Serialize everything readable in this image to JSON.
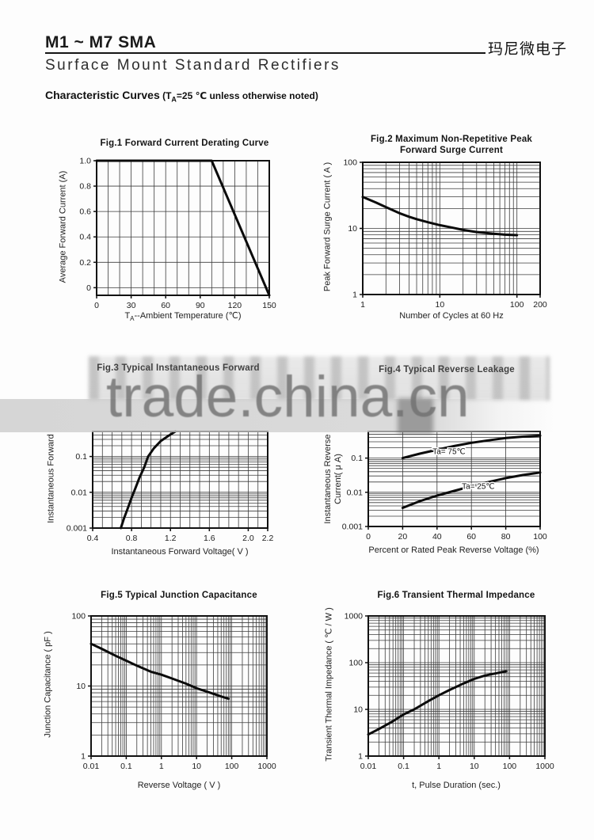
{
  "header": {
    "part_number": "M1 ~ M7 SMA",
    "subtitle": "Surface  Mount  Standard  Rectifiers",
    "brand": "玛尼微电子"
  },
  "section": {
    "heading_main": "Characteristic Curves",
    "cond_pre": " (T",
    "cond_sub": "A",
    "cond_post": "=25 ℃ unless otherwise noted)"
  },
  "watermark": {
    "text": "trade.china.cn"
  },
  "chart_data": [
    {
      "id": "fig1",
      "type": "line",
      "title_lines": [
        "Fig.1 Forward Current Derating Curve"
      ],
      "xlabel_prefix": "T",
      "xlabel_sub": "A",
      "xlabel_rest": "--Ambient Temperature (℃)",
      "ylabel": "Average Forward Current (A)",
      "x": {
        "type": "linear",
        "min": 0,
        "max": 150,
        "gstep": 10,
        "g0": 0,
        "ticks": [
          [
            0,
            "0"
          ],
          [
            30,
            "30"
          ],
          [
            60,
            "60"
          ],
          [
            90,
            "90"
          ],
          [
            120,
            "120"
          ],
          [
            150,
            "150"
          ]
        ]
      },
      "y": {
        "type": "linear",
        "min": -0.06,
        "max": 1.0,
        "gstep": 0.2,
        "g0": 0,
        "ticks": [
          [
            0,
            "0"
          ],
          [
            0.2,
            "0.2"
          ],
          [
            0.4,
            "0.4"
          ],
          [
            0.6,
            "0.6"
          ],
          [
            0.8,
            "0.8"
          ],
          [
            1.0,
            "1.0"
          ]
        ]
      },
      "grid": true,
      "series": [
        {
          "name": "forward-current-derating",
          "points": [
            [
              0,
              1
            ],
            [
              100,
              1
            ],
            [
              150,
              -0.06
            ]
          ]
        }
      ]
    },
    {
      "id": "fig2",
      "type": "line",
      "title_lines": [
        "Fig.2 Maximum Non-Repetitive Peak",
        "Forward Surge Current"
      ],
      "xlabel": "Number of Cycles at 60 Hz",
      "ylabel": "Peak Forward Surge Current ( A )",
      "x": {
        "type": "log",
        "min": 1,
        "max": 200,
        "ticks": [
          [
            1,
            "1"
          ],
          [
            10,
            "10"
          ],
          [
            100,
            "100"
          ],
          [
            200,
            "200"
          ]
        ]
      },
      "y": {
        "type": "log",
        "min": 1,
        "max": 100,
        "ticks": [
          [
            1,
            "1"
          ],
          [
            10,
            "10"
          ],
          [
            100,
            "100"
          ]
        ]
      },
      "grid": true,
      "series": [
        {
          "name": "peak-surge-current",
          "points": [
            [
              1,
              30
            ],
            [
              1.5,
              24.5
            ],
            [
              2,
              21
            ],
            [
              3,
              17
            ],
            [
              4,
              15
            ],
            [
              5,
              13.8
            ],
            [
              7,
              12.4
            ],
            [
              10,
              11.2
            ],
            [
              15,
              10.2
            ],
            [
              20,
              9.5
            ],
            [
              30,
              8.8
            ],
            [
              50,
              8.3
            ],
            [
              70,
              8.05
            ],
            [
              100,
              7.9
            ]
          ]
        }
      ]
    },
    {
      "id": "fig3",
      "type": "line",
      "title_lines": [
        "Fig.3 Typical Instantaneous Forward"
      ],
      "xlabel": "Instantaneous Forward Voltage( V )",
      "ylabel": "Instantaneous Forward",
      "x": {
        "type": "linear",
        "min": 0.4,
        "max": 2.2,
        "gstep": 0.1,
        "g0": 0.4,
        "ticks": [
          [
            0.4,
            "0.4"
          ],
          [
            0.8,
            "0.8"
          ],
          [
            1.2,
            "1.2"
          ],
          [
            1.6,
            "1.6"
          ],
          [
            2.0,
            "2.0"
          ],
          [
            2.2,
            "2.2"
          ]
        ]
      },
      "y": {
        "type": "log",
        "min": 0.001,
        "max": 0.5,
        "ticks": [
          [
            0.1,
            "0.1"
          ],
          [
            0.01,
            "0.01"
          ],
          [
            0.001,
            "0.001"
          ]
        ]
      },
      "grid": true,
      "series": [
        {
          "name": "instantaneous-forward",
          "points": [
            [
              0.69,
              0.001
            ],
            [
              0.72,
              0.0018
            ],
            [
              0.76,
              0.0035
            ],
            [
              0.8,
              0.007
            ],
            [
              0.84,
              0.013
            ],
            [
              0.88,
              0.025
            ],
            [
              0.93,
              0.05
            ],
            [
              0.97,
              0.1
            ],
            [
              1.03,
              0.17
            ],
            [
              1.1,
              0.27
            ],
            [
              1.18,
              0.38
            ],
            [
              1.25,
              0.5
            ]
          ]
        }
      ]
    },
    {
      "id": "fig4",
      "type": "line",
      "title_lines": [
        "Fig.4 Typical Reverse Leakage"
      ],
      "xlabel": "Percent or Rated Peak Reverse Voltage (%)",
      "ylabel_lines": [
        "Instantaneous Reverse",
        "Current( μ A)"
      ],
      "x": {
        "type": "linear",
        "min": 0,
        "max": 100,
        "gstep": 20,
        "g0": 0,
        "ticks": [
          [
            0,
            "0"
          ],
          [
            20,
            "20"
          ],
          [
            40,
            "40"
          ],
          [
            60,
            "60"
          ],
          [
            80,
            "80"
          ],
          [
            100,
            "100"
          ]
        ]
      },
      "y": {
        "type": "log",
        "min": 0.001,
        "max": 0.6,
        "ticks": [
          [
            0.1,
            "0.1"
          ],
          [
            0.01,
            "0.01"
          ],
          [
            0.001,
            "0.001"
          ]
        ]
      },
      "grid": true,
      "series": [
        {
          "name": "reverse-leakage-75C",
          "label": "Ta= 75℃",
          "label_at": [
            47,
            0.13
          ],
          "points": [
            [
              20,
              0.1
            ],
            [
              30,
              0.135
            ],
            [
              40,
              0.175
            ],
            [
              50,
              0.225
            ],
            [
              60,
              0.28
            ],
            [
              70,
              0.33
            ],
            [
              80,
              0.385
            ],
            [
              90,
              0.425
            ],
            [
              100,
              0.455
            ]
          ]
        },
        {
          "name": "reverse-leakage-25C",
          "label": "Ta= 25℃",
          "label_at": [
            64,
            0.0125
          ],
          "points": [
            [
              20,
              0.0035
            ],
            [
              30,
              0.0055
            ],
            [
              40,
              0.008
            ],
            [
              50,
              0.011
            ],
            [
              60,
              0.015
            ],
            [
              70,
              0.02
            ],
            [
              80,
              0.026
            ],
            [
              90,
              0.032
            ],
            [
              100,
              0.038
            ]
          ]
        }
      ]
    },
    {
      "id": "fig5",
      "type": "line",
      "title_lines": [
        "Fig.5 Typical Junction Capacitance"
      ],
      "xlabel": "Reverse Voltage ( V )",
      "ylabel": "Junction Capacitance ( pF )",
      "x": {
        "type": "log",
        "min": 0.01,
        "max": 1000,
        "ticks": [
          [
            0.01,
            "0.01"
          ],
          [
            0.1,
            "0.1"
          ],
          [
            1,
            "1"
          ],
          [
            10,
            "10"
          ],
          [
            100,
            "100"
          ],
          [
            1000,
            "1000"
          ]
        ]
      },
      "y": {
        "type": "log",
        "min": 1,
        "max": 100,
        "ticks": [
          [
            1,
            "1"
          ],
          [
            10,
            "10"
          ],
          [
            100,
            "100"
          ]
        ]
      },
      "grid": true,
      "series": [
        {
          "name": "junction-capacitance",
          "points": [
            [
              0.01,
              40
            ],
            [
              0.02,
              34
            ],
            [
              0.05,
              27
            ],
            [
              0.1,
              23
            ],
            [
              0.2,
              19.5
            ],
            [
              0.5,
              16
            ],
            [
              1,
              14.5
            ],
            [
              2,
              12.8
            ],
            [
              5,
              10.8
            ],
            [
              10,
              9.3
            ],
            [
              20,
              8.3
            ],
            [
              50,
              7.1
            ],
            [
              80,
              6.6
            ]
          ]
        }
      ]
    },
    {
      "id": "fig6",
      "type": "line",
      "title_lines": [
        "Fig.6 Transient Thermal Impedance"
      ],
      "xlabel": "t, Pulse Duration (sec.)",
      "ylabel": "Transient Thermal Impedance ( ℃ / W )",
      "x": {
        "type": "log",
        "min": 0.01,
        "max": 1000,
        "ticks": [
          [
            0.01,
            "0.01"
          ],
          [
            0.1,
            "0.1"
          ],
          [
            1,
            "1"
          ],
          [
            10,
            "10"
          ],
          [
            100,
            "100"
          ],
          [
            1000,
            "1000"
          ]
        ]
      },
      "y": {
        "type": "log",
        "min": 1,
        "max": 1000,
        "ticks": [
          [
            1,
            "1"
          ],
          [
            10,
            "10"
          ],
          [
            100,
            "100"
          ],
          [
            1000,
            "1000"
          ]
        ]
      },
      "grid": true,
      "series": [
        {
          "name": "transient-thermal-impedance",
          "points": [
            [
              0.01,
              2.9
            ],
            [
              0.02,
              3.8
            ],
            [
              0.05,
              5.6
            ],
            [
              0.1,
              7.8
            ],
            [
              0.2,
              10
            ],
            [
              0.5,
              15
            ],
            [
              1,
              20
            ],
            [
              2,
              26
            ],
            [
              5,
              36
            ],
            [
              10,
              45
            ],
            [
              20,
              53
            ],
            [
              50,
              61
            ],
            [
              80,
              65
            ]
          ]
        }
      ]
    }
  ]
}
